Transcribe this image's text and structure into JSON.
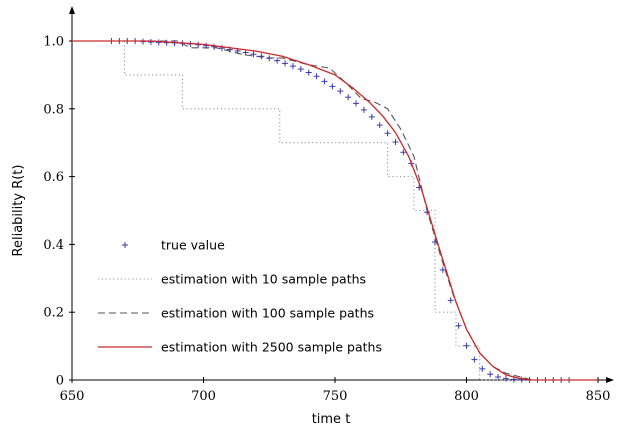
{
  "chart_data": {
    "type": "line",
    "title": "",
    "xlabel": "time t",
    "ylabel": "Reliability R(t)",
    "xlim": [
      650,
      850
    ],
    "ylim": [
      0,
      1.06
    ],
    "x_ticks": [
      650,
      700,
      750,
      800,
      850
    ],
    "y_ticks": [
      0,
      0.2,
      0.4,
      0.6,
      0.8,
      1.0
    ],
    "x_tick_labels": [
      "650",
      "700",
      "750",
      "800",
      "850"
    ],
    "y_tick_labels": [
      "0",
      "0.2",
      "0.4",
      "0.6",
      "0.8",
      "1.0"
    ],
    "grid": false,
    "legend_position": "center-left",
    "series": [
      {
        "name": "true value",
        "style": "markers-plus",
        "color": "#3a3ab0",
        "x": [
          665,
          668,
          671,
          674,
          677,
          680,
          683,
          686,
          689,
          692,
          695,
          698,
          701,
          704,
          707,
          710,
          713,
          716,
          719,
          722,
          725,
          728,
          731,
          734,
          737,
          740,
          743,
          746,
          749,
          752,
          755,
          758,
          761,
          764,
          767,
          770,
          773,
          776,
          779,
          782,
          785,
          788,
          791,
          794,
          797,
          800,
          803,
          806,
          809,
          812,
          815,
          818,
          821,
          824,
          827,
          830,
          833,
          836,
          839
        ],
        "y": [
          1.0,
          1.0,
          1.0,
          1.0,
          0.998,
          0.997,
          0.996,
          0.995,
          0.994,
          0.993,
          0.991,
          0.989,
          0.986,
          0.983,
          0.979,
          0.975,
          0.971,
          0.966,
          0.961,
          0.955,
          0.949,
          0.942,
          0.934,
          0.926,
          0.917,
          0.907,
          0.896,
          0.881,
          0.866,
          0.852,
          0.834,
          0.816,
          0.797,
          0.776,
          0.752,
          0.728,
          0.702,
          0.672,
          0.639,
          0.568,
          0.495,
          0.407,
          0.325,
          0.235,
          0.16,
          0.101,
          0.06,
          0.033,
          0.017,
          0.009,
          0.004,
          0.002,
          0.001,
          0.0,
          0.0,
          0.0,
          0.0,
          0.0,
          0.0
        ]
      },
      {
        "name": "estimation with 10 sample paths",
        "style": "dotted",
        "color": "#999999",
        "x": [
          650,
          670,
          670,
          692,
          692,
          729,
          729,
          770,
          770,
          780,
          780,
          788,
          788,
          796,
          796,
          805,
          805,
          850
        ],
        "y": [
          1.0,
          1.0,
          0.9,
          0.9,
          0.8,
          0.8,
          0.7,
          0.7,
          0.6,
          0.6,
          0.5,
          0.5,
          0.2,
          0.2,
          0.1,
          0.1,
          0.0,
          0.0
        ]
      },
      {
        "name": "estimation with 100 sample paths",
        "style": "dashed",
        "color": "#555555",
        "x": [
          650,
          690,
          695,
          705,
          715,
          725,
          730,
          740,
          748,
          755,
          760,
          765,
          770,
          775,
          780,
          785,
          790,
          795,
          800,
          805,
          810,
          815,
          820,
          825,
          850
        ],
        "y": [
          1.0,
          1.0,
          0.98,
          0.98,
          0.96,
          0.95,
          0.95,
          0.93,
          0.92,
          0.87,
          0.83,
          0.82,
          0.8,
          0.74,
          0.66,
          0.5,
          0.37,
          0.25,
          0.15,
          0.08,
          0.04,
          0.02,
          0.01,
          0.0,
          0.0
        ]
      },
      {
        "name": "estimation with 2500 sample paths",
        "style": "solid",
        "color": "#cc2a2a",
        "x": [
          650,
          680,
          690,
          700,
          710,
          720,
          730,
          740,
          750,
          757,
          763,
          768,
          773,
          778,
          783,
          788,
          792,
          796,
          800,
          805,
          810,
          815,
          820,
          825,
          850
        ],
        "y": [
          1.0,
          1.0,
          0.995,
          0.99,
          0.98,
          0.97,
          0.955,
          0.93,
          0.9,
          0.86,
          0.82,
          0.78,
          0.73,
          0.66,
          0.56,
          0.43,
          0.33,
          0.23,
          0.15,
          0.08,
          0.04,
          0.015,
          0.005,
          0.0,
          0.0
        ]
      }
    ]
  }
}
